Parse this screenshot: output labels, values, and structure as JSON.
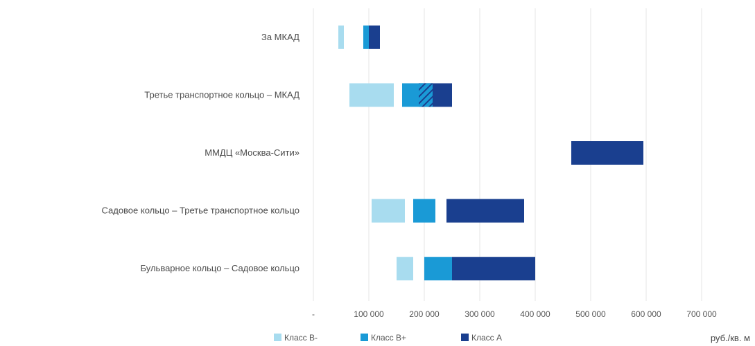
{
  "chart_data": {
    "type": "bar",
    "orientation": "horizontal",
    "range_bars": true,
    "categories": [
      "За МКАД",
      "Третье транспортное кольцо – МКАД",
      "ММДЦ «Москва-Сити»",
      "Садовое кольцо – Третье транспортное кольцо",
      "Бульварное кольцо – Садовое кольцо"
    ],
    "series": [
      {
        "name": "Класс B-",
        "color": "#a8dcef",
        "ranges": [
          [
            45000,
            55000
          ],
          [
            65000,
            145000
          ],
          null,
          [
            105000,
            165000
          ],
          [
            150000,
            180000
          ]
        ]
      },
      {
        "name": "Класс B+",
        "color": "#1a9ad6",
        "ranges": [
          [
            90000,
            100000
          ],
          [
            160000,
            215000
          ],
          null,
          [
            180000,
            220000
          ],
          [
            200000,
            250000
          ]
        ]
      },
      {
        "name": "Класс A",
        "color": "#1a3f8f",
        "ranges": [
          [
            100000,
            120000
          ],
          [
            190000,
            250000
          ],
          [
            465000,
            595000
          ],
          [
            240000,
            380000
          ],
          [
            250000,
            400000
          ]
        ]
      }
    ],
    "hatched_overlap": {
      "category": "Третье транспортное кольцо – МКАД",
      "range": [
        190000,
        215000
      ]
    },
    "xlim": [
      0,
      750000
    ],
    "xticks": [
      0,
      100000,
      200000,
      300000,
      400000,
      500000,
      600000,
      700000
    ],
    "xtick_labels": [
      "-",
      "100 000",
      "200 000",
      "300 000",
      "400 000",
      "500 000",
      "600 000",
      "700 000"
    ],
    "unit": "руб./кв. м",
    "grid": true,
    "legend_position": "bottom"
  }
}
